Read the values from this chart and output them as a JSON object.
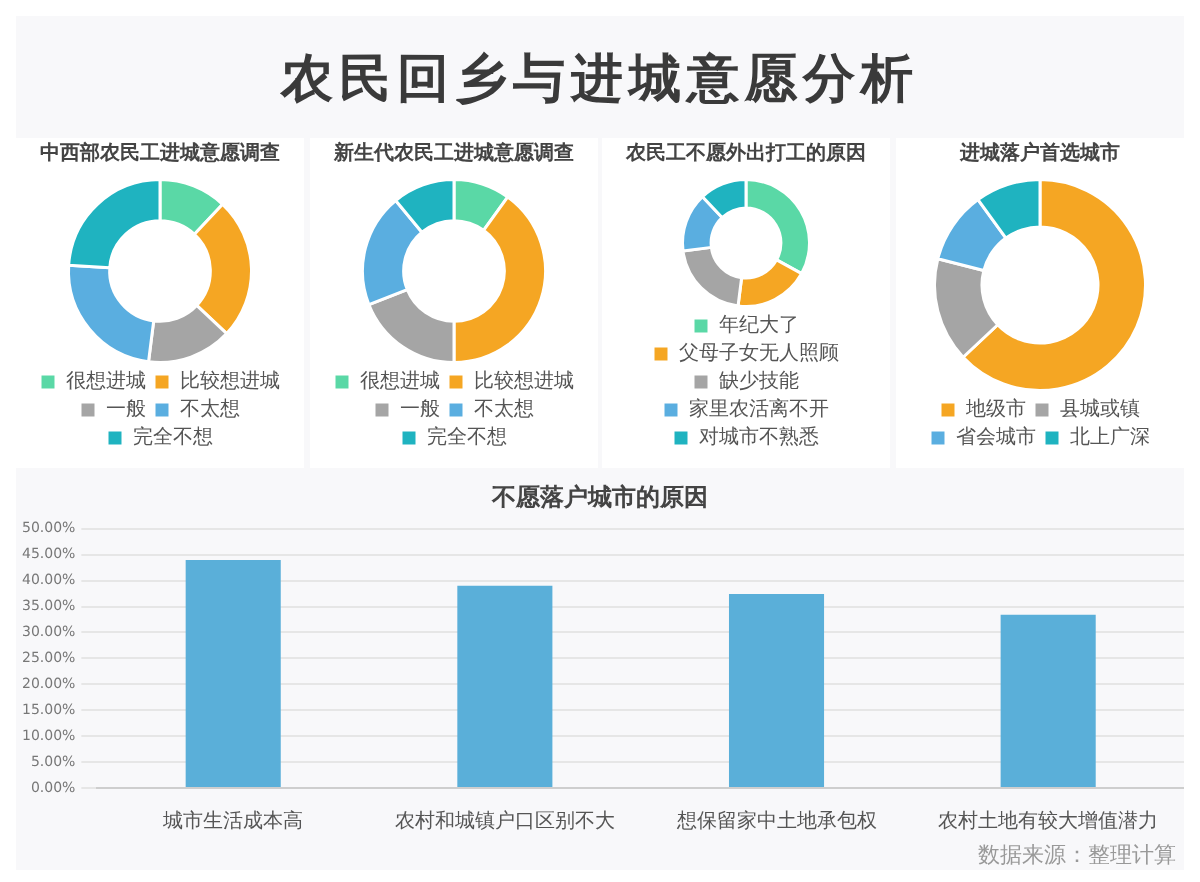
{
  "chart_data": [
    {
      "type": "other",
      "title": "农民回乡与进城意愿分析"
    },
    {
      "type": "donut",
      "title": "中西部农民工进城意愿调查",
      "categories": [
        "很想进城",
        "比较想进城",
        "一般",
        "不太想",
        "完全不想"
      ],
      "values": [
        12,
        25,
        15,
        24,
        24
      ],
      "colors": [
        "#5ad8a6",
        "#f5a623",
        "#a5a5a5",
        "#5aaee0",
        "#1fb3c0"
      ],
      "legend": "bottom"
    },
    {
      "type": "donut",
      "title": "新生代农民工进城意愿调查",
      "categories": [
        "很想进城",
        "比较想进城",
        "一般",
        "不太想",
        "完全不想"
      ],
      "values": [
        10,
        40,
        19,
        20,
        11
      ],
      "colors": [
        "#5ad8a6",
        "#f5a623",
        "#a5a5a5",
        "#5aaee0",
        "#1fb3c0"
      ],
      "legend": "bottom"
    },
    {
      "type": "donut",
      "title": "农民工不愿外出打工的原因",
      "categories": [
        "年纪大了",
        "父母子女无人照顾",
        "缺少技能",
        "家里农活离不开",
        "对城市不熟悉"
      ],
      "values": [
        33,
        19,
        21,
        15,
        12
      ],
      "colors": [
        "#5ad8a6",
        "#f5a623",
        "#a5a5a5",
        "#5aaee0",
        "#1fb3c0"
      ],
      "legend": "bottom"
    },
    {
      "type": "donut",
      "title": "进城落户首选城市",
      "categories": [
        "地级市",
        "县城或镇",
        "省会城市",
        "北上广深"
      ],
      "values": [
        63,
        16,
        11,
        10
      ],
      "colors": [
        "#f5a623",
        "#a5a5a5",
        "#5aaee0",
        "#1fb3c0"
      ],
      "legend": "bottom"
    },
    {
      "type": "bar",
      "title": "不愿落户城市的原因",
      "categories": [
        "城市生活成本高",
        "农村和城镇户口区别不大",
        "想保留家中土地承包权",
        "农村土地有较大增值潜力"
      ],
      "values": [
        44,
        39,
        37.4,
        33.4
      ],
      "color": "#5aafd9",
      "ylim": [
        0,
        50
      ],
      "yticks": [
        {
          "value": 0,
          "label": "0.00%"
        },
        {
          "value": 5,
          "label": "5.00%"
        },
        {
          "value": 10,
          "label": "10.00%"
        },
        {
          "value": 15,
          "label": "15.00%"
        },
        {
          "value": 20,
          "label": "20.00%"
        },
        {
          "value": 25,
          "label": "25.00%"
        },
        {
          "value": 30,
          "label": "30.00%"
        },
        {
          "value": 35,
          "label": "35.00%"
        },
        {
          "value": 40,
          "label": "40.00%"
        },
        {
          "value": 45,
          "label": "45.00%"
        },
        {
          "value": 50,
          "label": "50.00%"
        }
      ],
      "grid": "y",
      "annotations": [
        "数据来源：整理计算"
      ]
    }
  ]
}
